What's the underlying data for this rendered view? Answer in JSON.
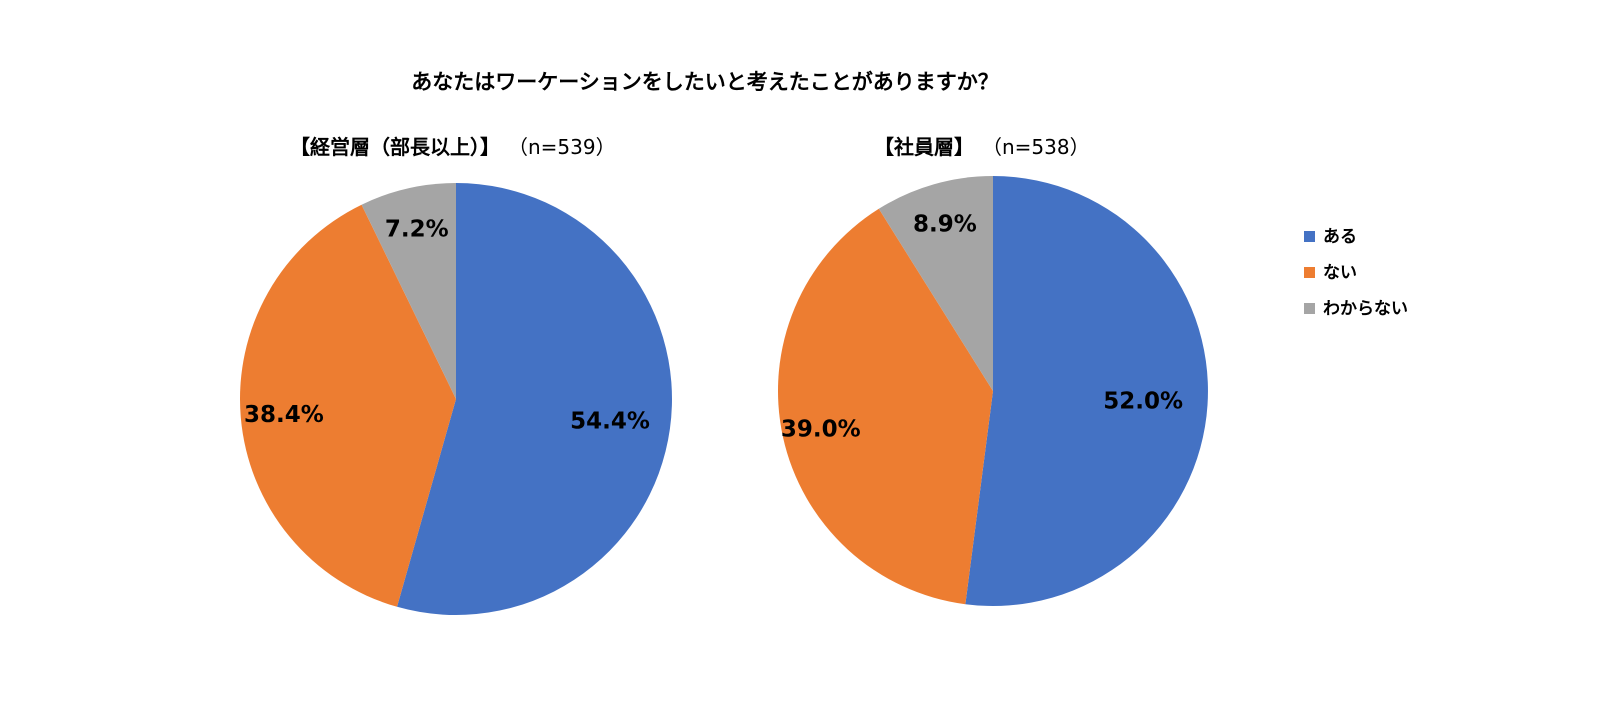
{
  "chart_data": [
    {
      "type": "pie",
      "title": "あなたはワーケーションをしたいと考えたことがありますか？",
      "subtitle": "【経営層（部長以上）】",
      "n_label": "（n=539）",
      "categories": [
        "ある",
        "ない",
        "わからない"
      ],
      "values": [
        54.4,
        38.4,
        7.2
      ],
      "value_labels": [
        "54.4%",
        "38.4%",
        "7.2%"
      ],
      "colors": [
        "#4472C4",
        "#ED7D31",
        "#A5A5A5"
      ]
    },
    {
      "type": "pie",
      "title": "あなたはワーケーションをしたいと考えたことがありますか？",
      "subtitle": "【社員層】",
      "n_label": "（n=538）",
      "categories": [
        "ある",
        "ない",
        "わからない"
      ],
      "values": [
        52.0,
        39.0,
        8.9
      ],
      "value_labels": [
        "52.0%",
        "39.0%",
        "8.9%"
      ],
      "colors": [
        "#4472C4",
        "#ED7D31",
        "#A5A5A5"
      ]
    }
  ],
  "legend": {
    "position": "right",
    "items": [
      {
        "label": "ある",
        "color": "#4472C4"
      },
      {
        "label": "ない",
        "color": "#ED7D31"
      },
      {
        "label": "わからない",
        "color": "#A5A5A5"
      }
    ]
  }
}
